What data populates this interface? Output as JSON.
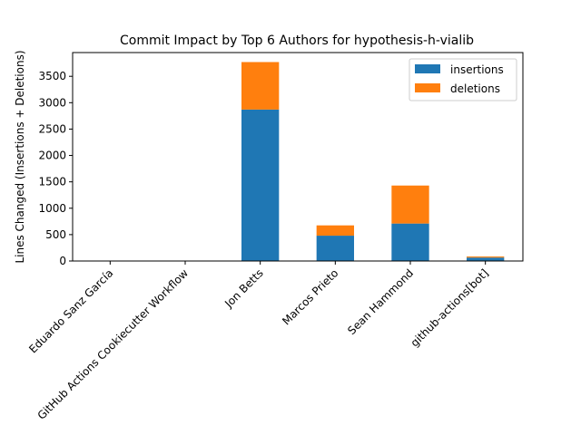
{
  "chart_data": {
    "type": "bar",
    "stacked": true,
    "title": "Commit Impact by Top 6 Authors for hypothesis-h-vialib",
    "xlabel": "",
    "ylabel": "Lines Changed (Insertions + Deletions)",
    "categories": [
      "Eduardo Sanz García",
      "GitHub Actions Cookiecutter Workflow",
      "Jon Betts",
      "Marcos Prieto",
      "Sean Hammond",
      "github-actions[bot]"
    ],
    "series": [
      {
        "name": "insertions",
        "color": "#1f77b4",
        "values": [
          2,
          3,
          2870,
          480,
          710,
          65
        ]
      },
      {
        "name": "deletions",
        "color": "#ff7f0e",
        "values": [
          1,
          2,
          900,
          195,
          720,
          20
        ]
      }
    ],
    "ylim": [
      0,
      3950
    ],
    "yticks": [
      0,
      500,
      1000,
      1500,
      2000,
      2500,
      3000,
      3500
    ],
    "grid": false,
    "legend_position": "top-right"
  }
}
